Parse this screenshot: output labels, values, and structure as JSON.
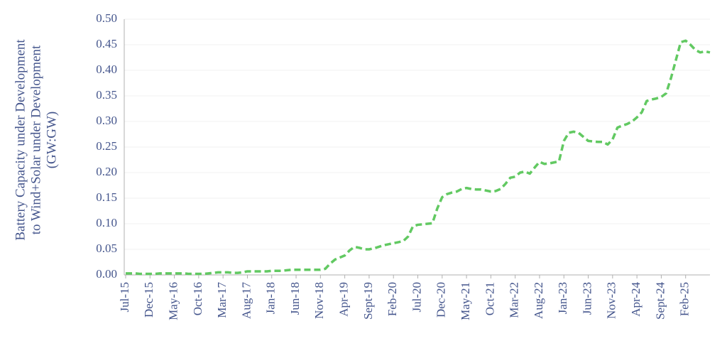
{
  "chart_data": {
    "type": "line",
    "y_label": [
      "Battery Capacity under Development",
      "to Wind+Solar under Development",
      "(GW:GW)"
    ],
    "categories": [
      "Jul-15",
      null,
      null,
      null,
      null,
      "Dec-15",
      null,
      null,
      null,
      null,
      "May-16",
      null,
      null,
      null,
      null,
      "Oct-16",
      null,
      null,
      null,
      null,
      "Mar-17",
      null,
      null,
      null,
      null,
      "Aug-17",
      null,
      null,
      null,
      null,
      "Jan-18",
      null,
      null,
      null,
      null,
      "Jun-18",
      null,
      null,
      null,
      null,
      "Nov-18",
      null,
      null,
      null,
      null,
      "Apr-19",
      null,
      null,
      null,
      null,
      "Sept-19",
      null,
      null,
      null,
      null,
      "Feb-20",
      null,
      null,
      null,
      null,
      "Jul-20",
      null,
      null,
      null,
      null,
      "Dec-20",
      null,
      null,
      null,
      null,
      "May-21",
      null,
      null,
      null,
      null,
      "Oct-21",
      null,
      null,
      null,
      null,
      "Mar-22",
      null,
      null,
      null,
      null,
      "Aug-22",
      null,
      null,
      null,
      null,
      "Jan-23",
      null,
      null,
      null,
      null,
      "Jun-23",
      null,
      null,
      null,
      null,
      "Nov-23",
      null,
      null,
      null,
      null,
      "Apr-24",
      null,
      null,
      null,
      null,
      "Sept-24",
      null,
      null,
      null,
      null,
      "Feb-25",
      null,
      null,
      null,
      null,
      null
    ],
    "series": [
      {
        "color": "#62c962",
        "values": [
          0.003,
          0.003,
          0.003,
          0.002,
          0.002,
          0.002,
          0.002,
          0.003,
          0.003,
          0.003,
          0.003,
          0.003,
          0.003,
          0.002,
          0.002,
          0.002,
          0.002,
          0.003,
          0.004,
          0.005,
          0.005,
          0.005,
          0.004,
          0.004,
          0.005,
          0.007,
          0.007,
          0.007,
          0.007,
          0.007,
          0.008,
          0.008,
          0.008,
          0.009,
          0.01,
          0.01,
          0.01,
          0.01,
          0.01,
          0.01,
          0.01,
          0.012,
          0.022,
          0.03,
          0.034,
          0.038,
          0.048,
          0.055,
          0.053,
          0.05,
          0.05,
          0.052,
          0.055,
          0.058,
          0.06,
          0.062,
          0.064,
          0.066,
          0.075,
          0.095,
          0.098,
          0.099,
          0.1,
          0.101,
          0.13,
          0.152,
          0.158,
          0.161,
          0.163,
          0.168,
          0.17,
          0.168,
          0.167,
          0.167,
          0.165,
          0.163,
          0.164,
          0.168,
          0.178,
          0.19,
          0.192,
          0.2,
          0.202,
          0.198,
          0.21,
          0.221,
          0.217,
          0.218,
          0.22,
          0.222,
          0.262,
          0.278,
          0.28,
          0.278,
          0.27,
          0.262,
          0.261,
          0.26,
          0.26,
          0.255,
          0.265,
          0.288,
          0.292,
          0.295,
          0.3,
          0.308,
          0.318,
          0.34,
          0.343,
          0.345,
          0.348,
          0.355,
          0.385,
          0.42,
          0.455,
          0.458,
          0.45,
          0.44,
          0.435,
          0.437,
          0.435
        ]
      }
    ],
    "ylim": [
      0,
      0.5
    ],
    "yticks": [
      {
        "value": 0,
        "label": "0.00"
      },
      {
        "value": 0.05,
        "label": "0.05"
      },
      {
        "value": 0.1,
        "label": "0.10"
      },
      {
        "value": 0.15,
        "label": "0.15"
      },
      {
        "value": 0.2,
        "label": "0.20"
      },
      {
        "value": 0.25,
        "label": "0.25"
      },
      {
        "value": 0.3,
        "label": "0.30"
      },
      {
        "value": 0.35,
        "label": "0.35"
      },
      {
        "value": 0.4,
        "label": "0.40"
      },
      {
        "value": 0.45,
        "label": "0.45"
      },
      {
        "value": 0.5,
        "label": "0.50"
      }
    ],
    "grid": true
  }
}
